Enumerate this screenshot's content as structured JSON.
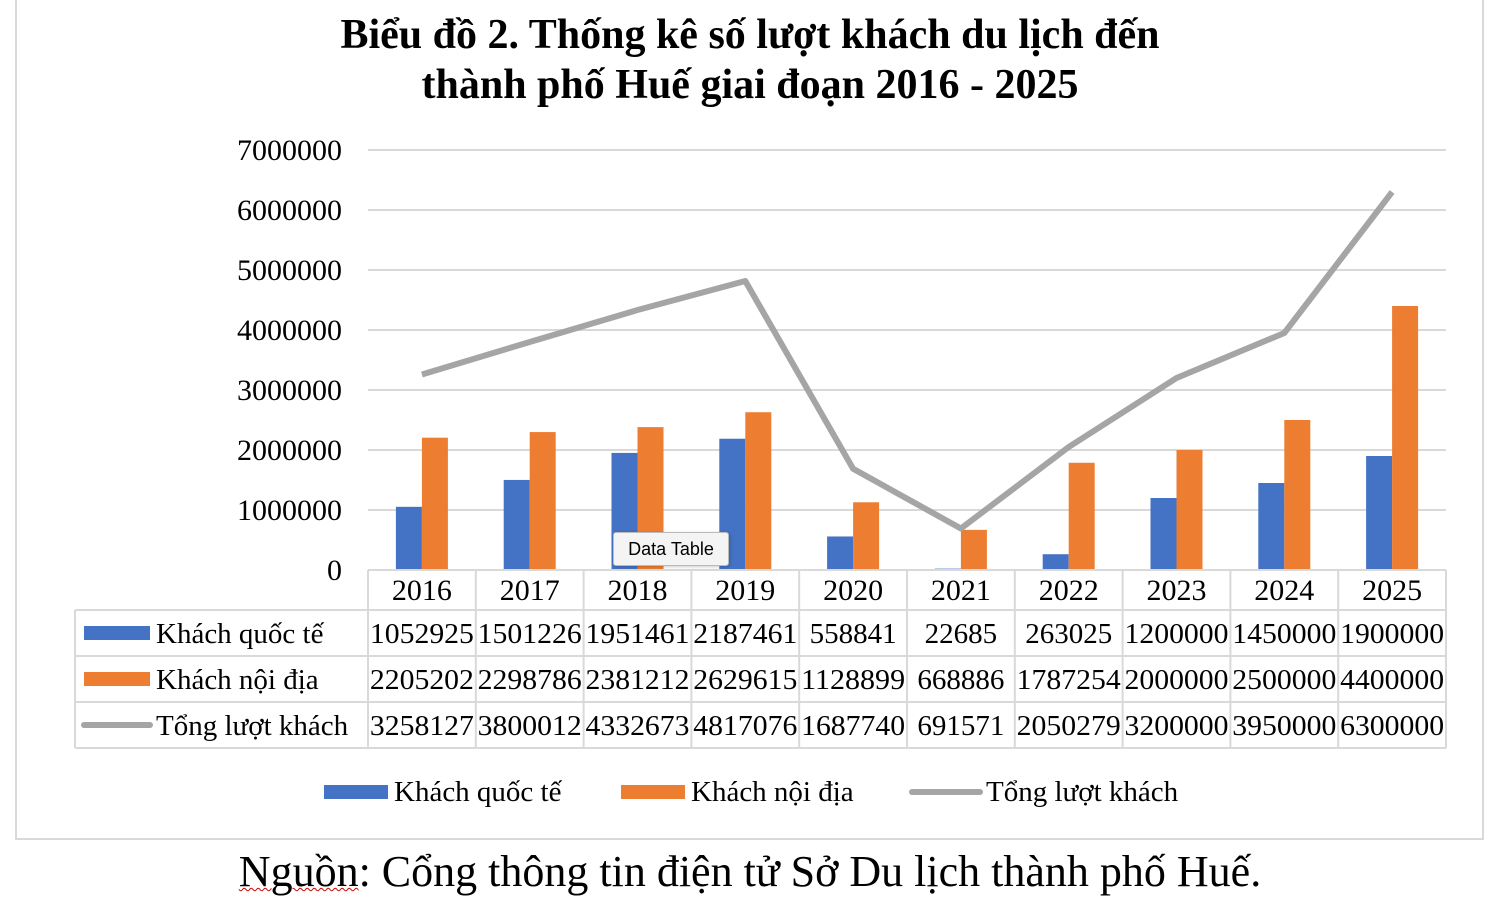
{
  "chart_data": {
    "type": "bar",
    "title_lines": [
      "Biểu đồ 2. Thống kê số lượt khách du lịch đến",
      "thành phố Huế giai đoạn 2016 - 2025"
    ],
    "categories": [
      "2016",
      "2017",
      "2018",
      "2019",
      "2020",
      "2021",
      "2022",
      "2023",
      "2024",
      "2025"
    ],
    "ylim": [
      0,
      7000000
    ],
    "yticks": [
      "0",
      "1000000",
      "2000000",
      "3000000",
      "4000000",
      "5000000",
      "6000000",
      "7000000"
    ],
    "grid": true,
    "legend_position": "bottom",
    "series": [
      {
        "name": "Khách quốc tế",
        "kind": "bar",
        "color": "#4472c4",
        "values": [
          1052925,
          1501226,
          1951461,
          2187461,
          558841,
          22685,
          263025,
          1200000,
          1450000,
          1900000
        ]
      },
      {
        "name": "Khách nội địa",
        "kind": "bar",
        "color": "#ed7d31",
        "values": [
          2205202,
          2298786,
          2381212,
          2629615,
          1128899,
          668886,
          1787254,
          2000000,
          2500000,
          4400000
        ]
      },
      {
        "name": "Tổng lượt khách",
        "kind": "line",
        "color": "#a5a5a5",
        "values": [
          3258127,
          3800012,
          4332673,
          4817076,
          1687740,
          691571,
          2050279,
          3200000,
          3950000,
          6300000
        ]
      }
    ]
  },
  "tooltip": "Data Table",
  "source": {
    "prefix": "Nguồn",
    "rest": ": Cổng thông tin điện tử Sở Du lịch thành phố Huế."
  }
}
